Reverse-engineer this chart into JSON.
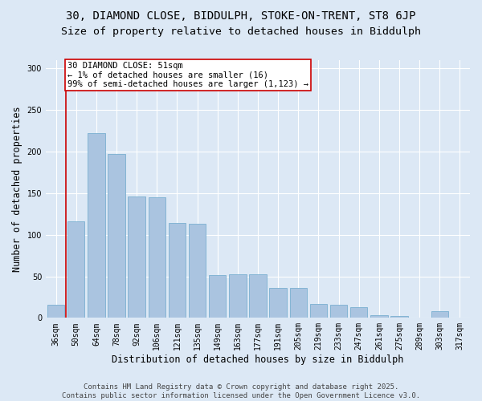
{
  "title_line1": "30, DIAMOND CLOSE, BIDDULPH, STOKE-ON-TRENT, ST8 6JP",
  "title_line2": "Size of property relative to detached houses in Biddulph",
  "xlabel": "Distribution of detached houses by size in Biddulph",
  "ylabel": "Number of detached properties",
  "categories": [
    "36sqm",
    "50sqm",
    "64sqm",
    "78sqm",
    "92sqm",
    "106sqm",
    "121sqm",
    "135sqm",
    "149sqm",
    "163sqm",
    "177sqm",
    "191sqm",
    "205sqm",
    "219sqm",
    "233sqm",
    "247sqm",
    "261sqm",
    "275sqm",
    "289sqm",
    "303sqm",
    "317sqm"
  ],
  "values": [
    16,
    116,
    222,
    197,
    146,
    145,
    114,
    113,
    51,
    52,
    52,
    36,
    36,
    17,
    16,
    13,
    3,
    2,
    0,
    8,
    0
  ],
  "bar_color": "#aac4e0",
  "bar_edge_color": "#7aafd0",
  "background_color": "#dce8f5",
  "grid_color": "#ffffff",
  "annotation_box_text": "30 DIAMOND CLOSE: 51sqm\n← 1% of detached houses are smaller (16)\n99% of semi-detached houses are larger (1,123) →",
  "annotation_box_color": "#ffffff",
  "annotation_box_edge_color": "#cc0000",
  "vline_color": "#cc0000",
  "ylim": [
    0,
    310
  ],
  "yticks": [
    0,
    50,
    100,
    150,
    200,
    250,
    300
  ],
  "footer_line1": "Contains HM Land Registry data © Crown copyright and database right 2025.",
  "footer_line2": "Contains public sector information licensed under the Open Government Licence v3.0.",
  "title_fontsize": 10,
  "subtitle_fontsize": 9.5,
  "axis_label_fontsize": 8.5,
  "tick_fontsize": 7,
  "annotation_fontsize": 7.5,
  "footer_fontsize": 6.5
}
